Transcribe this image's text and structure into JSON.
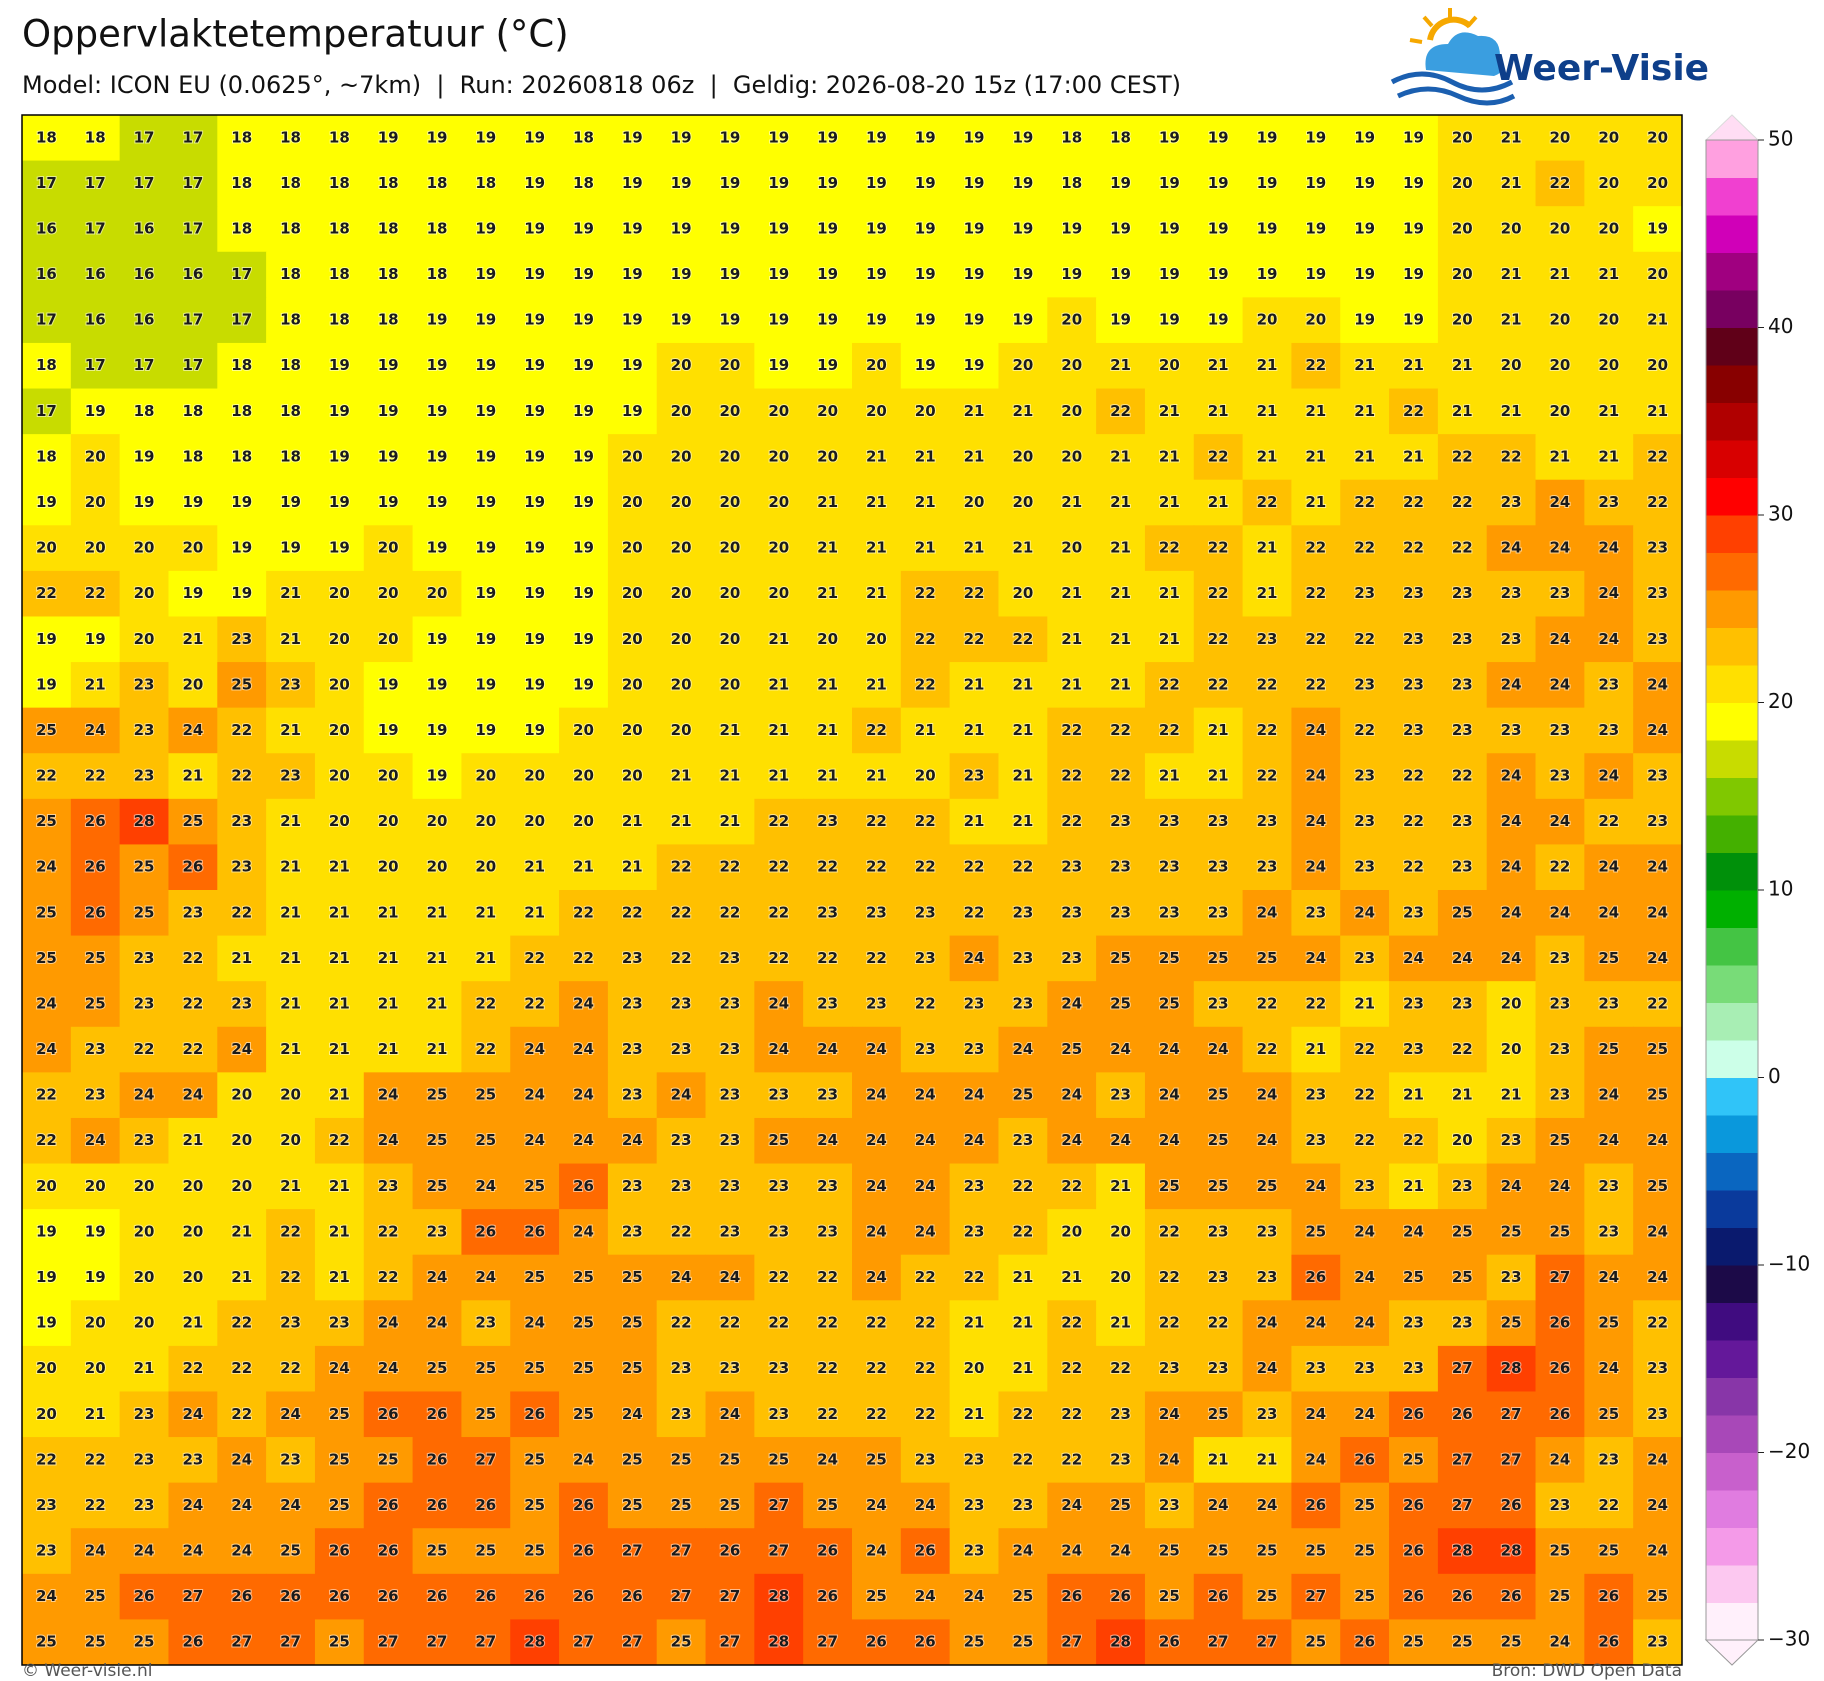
{
  "header": {
    "title": "Oppervlaktetemperatuur (°C)",
    "subtitle": "Model: ICON EU (0.0625°, ~7km)  |  Run: 20260818 06z  |  Geldig: 2026-08-20 15z (17:00 CEST)"
  },
  "logo": {
    "text": "Weer-Visie"
  },
  "map": {
    "type": "heatmap",
    "rows": [
      [
        18,
        18,
        17,
        17,
        18,
        18,
        18,
        19,
        19,
        19,
        19,
        18,
        19,
        19,
        19,
        19,
        19,
        19,
        19,
        19,
        19,
        18,
        18,
        19,
        19,
        19,
        19,
        19,
        19,
        20,
        21,
        20,
        20,
        20
      ],
      [
        17,
        17,
        17,
        17,
        18,
        18,
        18,
        18,
        18,
        18,
        19,
        18,
        19,
        19,
        19,
        19,
        19,
        19,
        19,
        19,
        19,
        18,
        19,
        19,
        19,
        19,
        19,
        19,
        19,
        20,
        21,
        22,
        20,
        20
      ],
      [
        16,
        17,
        16,
        17,
        18,
        18,
        18,
        18,
        18,
        19,
        19,
        19,
        19,
        19,
        19,
        19,
        19,
        19,
        19,
        19,
        19,
        19,
        19,
        19,
        19,
        19,
        19,
        19,
        19,
        20,
        20,
        20,
        20,
        19
      ],
      [
        16,
        16,
        16,
        16,
        17,
        18,
        18,
        18,
        18,
        19,
        19,
        19,
        19,
        19,
        19,
        19,
        19,
        19,
        19,
        19,
        19,
        19,
        19,
        19,
        19,
        19,
        19,
        19,
        19,
        20,
        21,
        21,
        21,
        20
      ],
      [
        17,
        16,
        16,
        17,
        17,
        18,
        18,
        18,
        19,
        19,
        19,
        19,
        19,
        19,
        19,
        19,
        19,
        19,
        19,
        19,
        19,
        20,
        19,
        19,
        19,
        20,
        20,
        19,
        19,
        20,
        21,
        20,
        20,
        21
      ],
      [
        18,
        17,
        17,
        17,
        18,
        18,
        19,
        19,
        19,
        19,
        19,
        19,
        19,
        20,
        20,
        19,
        19,
        20,
        19,
        19,
        20,
        20,
        21,
        20,
        21,
        21,
        22,
        21,
        21,
        21,
        20,
        20,
        20,
        20
      ],
      [
        17,
        19,
        18,
        18,
        18,
        18,
        19,
        19,
        19,
        19,
        19,
        19,
        19,
        20,
        20,
        20,
        20,
        20,
        20,
        21,
        21,
        20,
        22,
        21,
        21,
        21,
        21,
        21,
        22,
        21,
        21,
        20,
        21,
        21
      ],
      [
        18,
        20,
        19,
        18,
        18,
        18,
        19,
        19,
        19,
        19,
        19,
        19,
        20,
        20,
        20,
        20,
        20,
        21,
        21,
        21,
        20,
        20,
        21,
        21,
        22,
        21,
        21,
        21,
        21,
        22,
        22,
        21,
        21,
        22
      ],
      [
        19,
        20,
        19,
        19,
        19,
        19,
        19,
        19,
        19,
        19,
        19,
        19,
        20,
        20,
        20,
        20,
        21,
        21,
        21,
        20,
        20,
        21,
        21,
        21,
        21,
        22,
        21,
        22,
        22,
        22,
        23,
        24,
        23,
        22
      ],
      [
        20,
        20,
        20,
        20,
        19,
        19,
        19,
        20,
        19,
        19,
        19,
        19,
        20,
        20,
        20,
        20,
        21,
        21,
        21,
        21,
        21,
        20,
        21,
        22,
        22,
        21,
        22,
        22,
        22,
        22,
        24,
        24,
        24,
        23
      ],
      [
        22,
        22,
        20,
        19,
        19,
        21,
        20,
        20,
        20,
        19,
        19,
        19,
        20,
        20,
        20,
        20,
        21,
        21,
        22,
        22,
        20,
        21,
        21,
        21,
        22,
        21,
        22,
        23,
        23,
        23,
        23,
        23,
        24,
        23
      ],
      [
        19,
        19,
        20,
        21,
        23,
        21,
        20,
        20,
        19,
        19,
        19,
        19,
        20,
        20,
        20,
        21,
        20,
        20,
        22,
        22,
        22,
        21,
        21,
        21,
        22,
        23,
        22,
        22,
        23,
        23,
        23,
        24,
        24,
        23
      ],
      [
        19,
        21,
        23,
        20,
        25,
        23,
        20,
        19,
        19,
        19,
        19,
        19,
        20,
        20,
        20,
        21,
        21,
        21,
        22,
        21,
        21,
        21,
        21,
        22,
        22,
        22,
        22,
        23,
        23,
        23,
        24,
        24,
        23,
        24
      ],
      [
        25,
        24,
        23,
        24,
        22,
        21,
        20,
        19,
        19,
        19,
        19,
        20,
        20,
        20,
        21,
        21,
        21,
        22,
        21,
        21,
        21,
        22,
        22,
        22,
        21,
        22,
        24,
        22,
        23,
        23,
        23,
        23,
        23,
        24
      ],
      [
        22,
        22,
        23,
        21,
        22,
        23,
        20,
        20,
        19,
        20,
        20,
        20,
        20,
        21,
        21,
        21,
        21,
        21,
        20,
        23,
        21,
        22,
        22,
        21,
        21,
        22,
        24,
        23,
        22,
        22,
        24,
        23,
        24,
        23
      ],
      [
        25,
        26,
        28,
        25,
        23,
        21,
        20,
        20,
        20,
        20,
        20,
        20,
        21,
        21,
        21,
        22,
        23,
        22,
        22,
        21,
        21,
        22,
        23,
        23,
        23,
        23,
        24,
        23,
        22,
        23,
        24,
        24,
        22,
        23
      ],
      [
        24,
        26,
        25,
        26,
        23,
        21,
        21,
        20,
        20,
        20,
        21,
        21,
        21,
        22,
        22,
        22,
        22,
        22,
        22,
        22,
        22,
        23,
        23,
        23,
        23,
        23,
        24,
        23,
        22,
        23,
        24,
        22,
        24,
        24
      ],
      [
        25,
        26,
        25,
        23,
        22,
        21,
        21,
        21,
        21,
        21,
        21,
        22,
        22,
        22,
        22,
        22,
        23,
        23,
        23,
        22,
        23,
        23,
        23,
        23,
        23,
        24,
        23,
        24,
        23,
        25,
        24,
        24,
        24,
        24
      ],
      [
        25,
        25,
        23,
        22,
        21,
        21,
        21,
        21,
        21,
        21,
        22,
        22,
        23,
        22,
        23,
        22,
        22,
        22,
        23,
        24,
        23,
        23,
        25,
        25,
        25,
        25,
        24,
        23,
        24,
        24,
        24,
        23,
        25,
        24
      ],
      [
        24,
        25,
        23,
        22,
        23,
        21,
        21,
        21,
        21,
        22,
        22,
        24,
        23,
        23,
        23,
        24,
        23,
        23,
        22,
        23,
        23,
        24,
        25,
        25,
        23,
        22,
        22,
        21,
        23,
        23,
        20,
        23,
        23,
        22
      ],
      [
        24,
        23,
        22,
        22,
        24,
        21,
        21,
        21,
        21,
        22,
        24,
        24,
        23,
        23,
        23,
        24,
        24,
        24,
        23,
        23,
        24,
        25,
        24,
        24,
        24,
        22,
        21,
        22,
        23,
        22,
        20,
        23,
        25,
        25
      ],
      [
        22,
        23,
        24,
        24,
        20,
        20,
        21,
        24,
        25,
        25,
        24,
        24,
        23,
        24,
        23,
        23,
        23,
        24,
        24,
        24,
        25,
        24,
        23,
        24,
        25,
        24,
        23,
        22,
        21,
        21,
        21,
        23,
        24,
        25
      ],
      [
        22,
        24,
        23,
        21,
        20,
        20,
        22,
        24,
        25,
        25,
        24,
        24,
        24,
        23,
        23,
        25,
        24,
        24,
        24,
        24,
        23,
        24,
        24,
        24,
        25,
        24,
        23,
        22,
        22,
        20,
        23,
        25,
        24,
        24
      ],
      [
        20,
        20,
        20,
        20,
        20,
        21,
        21,
        23,
        25,
        24,
        25,
        26,
        23,
        23,
        23,
        23,
        23,
        24,
        24,
        23,
        22,
        22,
        21,
        25,
        25,
        25,
        24,
        23,
        21,
        23,
        24,
        24,
        23,
        25
      ],
      [
        19,
        19,
        20,
        20,
        21,
        22,
        21,
        22,
        23,
        26,
        26,
        24,
        23,
        22,
        23,
        23,
        23,
        24,
        24,
        23,
        22,
        20,
        20,
        22,
        23,
        23,
        25,
        24,
        24,
        25,
        25,
        25,
        23,
        24
      ],
      [
        19,
        19,
        20,
        20,
        21,
        22,
        21,
        22,
        24,
        24,
        25,
        25,
        25,
        24,
        24,
        22,
        22,
        24,
        22,
        22,
        21,
        21,
        20,
        22,
        23,
        23,
        26,
        24,
        25,
        25,
        23,
        27,
        24,
        24
      ],
      [
        19,
        20,
        20,
        21,
        22,
        23,
        23,
        24,
        24,
        23,
        24,
        25,
        25,
        22,
        22,
        22,
        22,
        22,
        22,
        21,
        21,
        22,
        21,
        22,
        22,
        24,
        24,
        24,
        23,
        23,
        25,
        26,
        25,
        22
      ],
      [
        20,
        20,
        21,
        22,
        22,
        22,
        24,
        24,
        25,
        25,
        25,
        25,
        25,
        23,
        23,
        23,
        22,
        22,
        22,
        20,
        21,
        22,
        22,
        23,
        23,
        24,
        23,
        23,
        23,
        27,
        28,
        26,
        24,
        23
      ],
      [
        20,
        21,
        23,
        24,
        22,
        24,
        25,
        26,
        26,
        25,
        26,
        25,
        24,
        23,
        24,
        23,
        22,
        22,
        22,
        21,
        22,
        22,
        23,
        24,
        25,
        23,
        24,
        24,
        26,
        26,
        27,
        26,
        25,
        23
      ],
      [
        22,
        22,
        23,
        23,
        24,
        23,
        25,
        25,
        26,
        27,
        25,
        24,
        25,
        25,
        25,
        25,
        24,
        25,
        23,
        23,
        22,
        22,
        23,
        24,
        21,
        21,
        24,
        26,
        25,
        27,
        27,
        24,
        23,
        24
      ],
      [
        23,
        22,
        23,
        24,
        24,
        24,
        25,
        26,
        26,
        26,
        25,
        26,
        25,
        25,
        25,
        27,
        25,
        24,
        24,
        23,
        23,
        24,
        25,
        23,
        24,
        24,
        26,
        25,
        26,
        27,
        26,
        23,
        22,
        24
      ],
      [
        23,
        24,
        24,
        24,
        24,
        25,
        26,
        26,
        25,
        25,
        25,
        26,
        27,
        27,
        26,
        27,
        26,
        24,
        26,
        23,
        24,
        24,
        24,
        25,
        25,
        25,
        25,
        25,
        26,
        28,
        28,
        25,
        25,
        24
      ],
      [
        24,
        25,
        26,
        27,
        26,
        26,
        26,
        26,
        26,
        26,
        26,
        26,
        26,
        27,
        27,
        28,
        26,
        25,
        24,
        24,
        25,
        26,
        26,
        25,
        26,
        25,
        27,
        25,
        26,
        26,
        26,
        25,
        26,
        25
      ],
      [
        25,
        25,
        25,
        26,
        27,
        27,
        25,
        27,
        27,
        27,
        28,
        27,
        27,
        25,
        27,
        28,
        27,
        26,
        26,
        25,
        25,
        27,
        28,
        26,
        27,
        27,
        25,
        26,
        25,
        25,
        25,
        24,
        26,
        23
      ]
    ]
  },
  "colorbar": {
    "lim": [
      -30,
      50
    ],
    "ticks": [
      {
        "value": -30,
        "label": "−30"
      },
      {
        "value": -20,
        "label": "−20"
      },
      {
        "value": -10,
        "label": "−10"
      },
      0,
      10,
      20,
      30,
      40,
      50
    ],
    "colors": [
      "#fff0fb",
      "#fcc8f0",
      "#f49ae8",
      "#e07ce0",
      "#c860cc",
      "#a848b8",
      "#8836a8",
      "#64189a",
      "#400c80",
      "#1c0a48",
      "#0a1a6e",
      "#0a3a9c",
      "#0a66c0",
      "#0a98dc",
      "#30c4f8",
      "#ccffe8",
      "#a8eeb4",
      "#78dc78",
      "#44c444",
      "#00b000",
      "#00900a",
      "#44b000",
      "#80c800",
      "#c8dc00",
      "#ffff00",
      "#ffe000",
      "#ffc000",
      "#ff9a00",
      "#ff6a00",
      "#ff4000",
      "#ff0000",
      "#d80000",
      "#b00000",
      "#880000",
      "#600018",
      "#780060",
      "#a00080",
      "#d000b8",
      "#f040d0",
      "#ffa0e0"
    ]
  },
  "footer": {
    "left": "© Weer-visie.nl",
    "right": "Bron: DWD Open Data"
  }
}
